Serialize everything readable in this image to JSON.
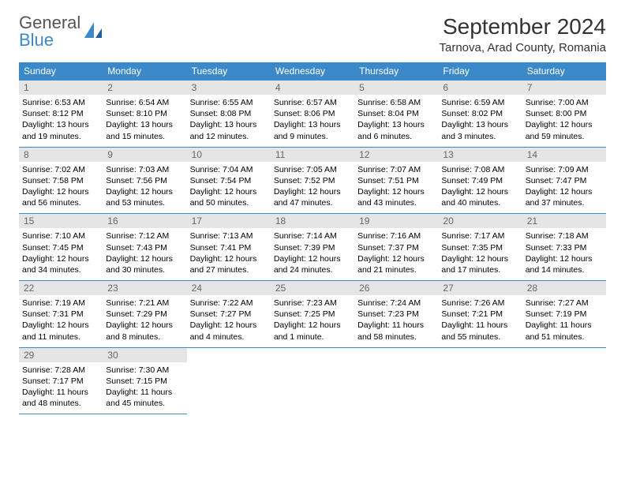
{
  "brand": {
    "line1": "General",
    "line2": "Blue"
  },
  "title": "September 2024",
  "location": "Tarnova, Arad County, Romania",
  "colors": {
    "header_bg": "#3b89c9",
    "header_text": "#ffffff",
    "daynum_bg": "#e5e5e5",
    "daynum_text": "#666666",
    "row_border": "#3b89c9",
    "page_bg": "#ffffff",
    "body_text": "#000000"
  },
  "typography": {
    "month_title_fontsize": 28,
    "location_fontsize": 15,
    "header_cell_fontsize": 12,
    "daynum_fontsize": 12,
    "body_fontsize": 10.5
  },
  "dayHeaders": [
    "Sunday",
    "Monday",
    "Tuesday",
    "Wednesday",
    "Thursday",
    "Friday",
    "Saturday"
  ],
  "weeks": [
    [
      {
        "n": "1",
        "sr": "Sunrise: 6:53 AM",
        "ss": "Sunset: 8:12 PM",
        "d1": "Daylight: 13 hours",
        "d2": "and 19 minutes."
      },
      {
        "n": "2",
        "sr": "Sunrise: 6:54 AM",
        "ss": "Sunset: 8:10 PM",
        "d1": "Daylight: 13 hours",
        "d2": "and 15 minutes."
      },
      {
        "n": "3",
        "sr": "Sunrise: 6:55 AM",
        "ss": "Sunset: 8:08 PM",
        "d1": "Daylight: 13 hours",
        "d2": "and 12 minutes."
      },
      {
        "n": "4",
        "sr": "Sunrise: 6:57 AM",
        "ss": "Sunset: 8:06 PM",
        "d1": "Daylight: 13 hours",
        "d2": "and 9 minutes."
      },
      {
        "n": "5",
        "sr": "Sunrise: 6:58 AM",
        "ss": "Sunset: 8:04 PM",
        "d1": "Daylight: 13 hours",
        "d2": "and 6 minutes."
      },
      {
        "n": "6",
        "sr": "Sunrise: 6:59 AM",
        "ss": "Sunset: 8:02 PM",
        "d1": "Daylight: 13 hours",
        "d2": "and 3 minutes."
      },
      {
        "n": "7",
        "sr": "Sunrise: 7:00 AM",
        "ss": "Sunset: 8:00 PM",
        "d1": "Daylight: 12 hours",
        "d2": "and 59 minutes."
      }
    ],
    [
      {
        "n": "8",
        "sr": "Sunrise: 7:02 AM",
        "ss": "Sunset: 7:58 PM",
        "d1": "Daylight: 12 hours",
        "d2": "and 56 minutes."
      },
      {
        "n": "9",
        "sr": "Sunrise: 7:03 AM",
        "ss": "Sunset: 7:56 PM",
        "d1": "Daylight: 12 hours",
        "d2": "and 53 minutes."
      },
      {
        "n": "10",
        "sr": "Sunrise: 7:04 AM",
        "ss": "Sunset: 7:54 PM",
        "d1": "Daylight: 12 hours",
        "d2": "and 50 minutes."
      },
      {
        "n": "11",
        "sr": "Sunrise: 7:05 AM",
        "ss": "Sunset: 7:52 PM",
        "d1": "Daylight: 12 hours",
        "d2": "and 47 minutes."
      },
      {
        "n": "12",
        "sr": "Sunrise: 7:07 AM",
        "ss": "Sunset: 7:51 PM",
        "d1": "Daylight: 12 hours",
        "d2": "and 43 minutes."
      },
      {
        "n": "13",
        "sr": "Sunrise: 7:08 AM",
        "ss": "Sunset: 7:49 PM",
        "d1": "Daylight: 12 hours",
        "d2": "and 40 minutes."
      },
      {
        "n": "14",
        "sr": "Sunrise: 7:09 AM",
        "ss": "Sunset: 7:47 PM",
        "d1": "Daylight: 12 hours",
        "d2": "and 37 minutes."
      }
    ],
    [
      {
        "n": "15",
        "sr": "Sunrise: 7:10 AM",
        "ss": "Sunset: 7:45 PM",
        "d1": "Daylight: 12 hours",
        "d2": "and 34 minutes."
      },
      {
        "n": "16",
        "sr": "Sunrise: 7:12 AM",
        "ss": "Sunset: 7:43 PM",
        "d1": "Daylight: 12 hours",
        "d2": "and 30 minutes."
      },
      {
        "n": "17",
        "sr": "Sunrise: 7:13 AM",
        "ss": "Sunset: 7:41 PM",
        "d1": "Daylight: 12 hours",
        "d2": "and 27 minutes."
      },
      {
        "n": "18",
        "sr": "Sunrise: 7:14 AM",
        "ss": "Sunset: 7:39 PM",
        "d1": "Daylight: 12 hours",
        "d2": "and 24 minutes."
      },
      {
        "n": "19",
        "sr": "Sunrise: 7:16 AM",
        "ss": "Sunset: 7:37 PM",
        "d1": "Daylight: 12 hours",
        "d2": "and 21 minutes."
      },
      {
        "n": "20",
        "sr": "Sunrise: 7:17 AM",
        "ss": "Sunset: 7:35 PM",
        "d1": "Daylight: 12 hours",
        "d2": "and 17 minutes."
      },
      {
        "n": "21",
        "sr": "Sunrise: 7:18 AM",
        "ss": "Sunset: 7:33 PM",
        "d1": "Daylight: 12 hours",
        "d2": "and 14 minutes."
      }
    ],
    [
      {
        "n": "22",
        "sr": "Sunrise: 7:19 AM",
        "ss": "Sunset: 7:31 PM",
        "d1": "Daylight: 12 hours",
        "d2": "and 11 minutes."
      },
      {
        "n": "23",
        "sr": "Sunrise: 7:21 AM",
        "ss": "Sunset: 7:29 PM",
        "d1": "Daylight: 12 hours",
        "d2": "and 8 minutes."
      },
      {
        "n": "24",
        "sr": "Sunrise: 7:22 AM",
        "ss": "Sunset: 7:27 PM",
        "d1": "Daylight: 12 hours",
        "d2": "and 4 minutes."
      },
      {
        "n": "25",
        "sr": "Sunrise: 7:23 AM",
        "ss": "Sunset: 7:25 PM",
        "d1": "Daylight: 12 hours",
        "d2": "and 1 minute."
      },
      {
        "n": "26",
        "sr": "Sunrise: 7:24 AM",
        "ss": "Sunset: 7:23 PM",
        "d1": "Daylight: 11 hours",
        "d2": "and 58 minutes."
      },
      {
        "n": "27",
        "sr": "Sunrise: 7:26 AM",
        "ss": "Sunset: 7:21 PM",
        "d1": "Daylight: 11 hours",
        "d2": "and 55 minutes."
      },
      {
        "n": "28",
        "sr": "Sunrise: 7:27 AM",
        "ss": "Sunset: 7:19 PM",
        "d1": "Daylight: 11 hours",
        "d2": "and 51 minutes."
      }
    ],
    [
      {
        "n": "29",
        "sr": "Sunrise: 7:28 AM",
        "ss": "Sunset: 7:17 PM",
        "d1": "Daylight: 11 hours",
        "d2": "and 48 minutes."
      },
      {
        "n": "30",
        "sr": "Sunrise: 7:30 AM",
        "ss": "Sunset: 7:15 PM",
        "d1": "Daylight: 11 hours",
        "d2": "and 45 minutes."
      },
      null,
      null,
      null,
      null,
      null
    ]
  ]
}
